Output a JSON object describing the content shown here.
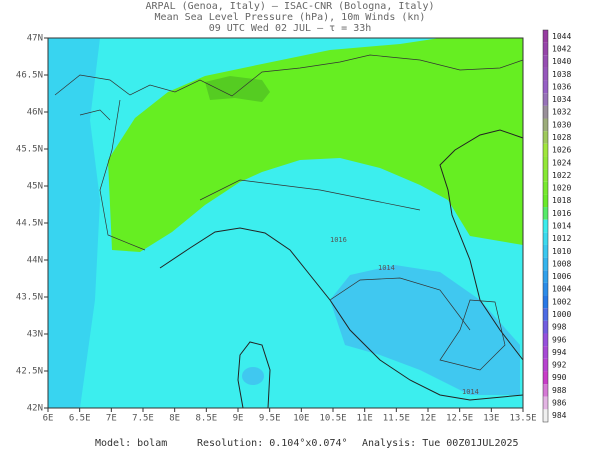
{
  "header": {
    "lines": [
      "ARPAL (Genoa, Italy)  –  ISAC-CNR (Bologna, Italy)",
      "Mean Sea Level Pressure (hPa), 10m Winds (kn)",
      "09 UTC Wed 02 JUL  –  τ = 33h"
    ]
  },
  "map": {
    "lat_ticks": [
      "47N",
      "46.5N",
      "46N",
      "45.5N",
      "45N",
      "44.5N",
      "44N",
      "43.5N",
      "43N",
      "42.5N",
      "42N"
    ],
    "lon_ticks": [
      "6E",
      "6.5E",
      "7E",
      "7.5E",
      "8E",
      "8.5E",
      "9E",
      "9.5E",
      "10E",
      "10.5E",
      "11E",
      "11.5E",
      "12E",
      "12.5E",
      "13E",
      "13.5E"
    ],
    "contour_labels": [
      "1016",
      "1014",
      "1014"
    ]
  },
  "colorbar": {
    "levels": [
      1044,
      1042,
      1040,
      1038,
      1036,
      1034,
      1032,
      1030,
      1028,
      1026,
      1024,
      1022,
      1020,
      1018,
      1016,
      1014,
      1012,
      1010,
      1008,
      1006,
      1004,
      1002,
      1000,
      998,
      996,
      994,
      992,
      990,
      988,
      986,
      984
    ]
  },
  "footer": {
    "model": "Model: bolam",
    "resolution": "Resolution: 0.104°x0.074°",
    "analysis": "Analysis: Tue 00Z01JUL2025"
  }
}
